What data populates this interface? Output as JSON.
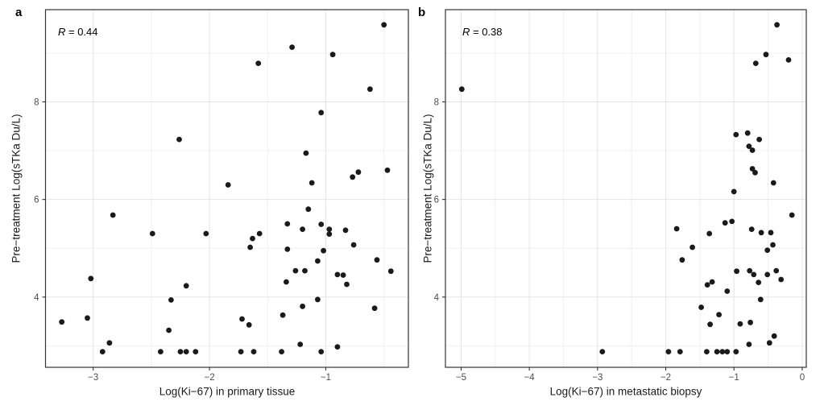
{
  "figure": {
    "colors": {
      "background": "#ffffff",
      "panel_border": "#333333",
      "grid_major": "#e5e5e5",
      "grid_minor": "#f0f0f0",
      "point": "#1a1a1a",
      "tick_mark": "#333333",
      "tick_label": "#4d4d4d",
      "axis_title": "#1a1a1a"
    }
  },
  "chart_data": [
    {
      "type": "scatter",
      "panel_label": "a",
      "annotation_r": "R",
      "annotation_value": " = 0.44",
      "annotation": "R = 0.44",
      "xlabel": "Log(Ki−67) in primary tissue",
      "ylabel": "Pre−treatment Log(sTKa Du/L)",
      "xlim": [
        -3.41,
        -0.29
      ],
      "ylim": [
        2.56,
        9.89
      ],
      "x_major_ticks": [
        -3,
        -2,
        -1
      ],
      "x_minor_ticks": [
        -2.5,
        -1.5,
        -0.5
      ],
      "y_major_ticks": [
        4,
        6,
        8
      ],
      "y_minor_ticks": [
        3,
        5,
        7,
        9
      ],
      "grid": true,
      "legend": "none",
      "points": [
        [
          -0.5,
          9.58
        ],
        [
          -1.29,
          9.12
        ],
        [
          -0.94,
          8.97
        ],
        [
          -1.58,
          8.79
        ],
        [
          -0.62,
          8.26
        ],
        [
          -1.04,
          7.78
        ],
        [
          -2.26,
          7.23
        ],
        [
          -1.17,
          6.95
        ],
        [
          -1.84,
          6.3
        ],
        [
          -1.12,
          6.34
        ],
        [
          -0.77,
          6.46
        ],
        [
          -0.72,
          6.56
        ],
        [
          -0.47,
          6.6
        ],
        [
          -2.83,
          5.68
        ],
        [
          -1.15,
          5.8
        ],
        [
          -2.49,
          5.3
        ],
        [
          -2.03,
          5.3
        ],
        [
          -1.57,
          5.3
        ],
        [
          -1.63,
          5.2
        ],
        [
          -1.65,
          5.02
        ],
        [
          -1.33,
          5.5
        ],
        [
          -1.2,
          5.39
        ],
        [
          -1.04,
          5.49
        ],
        [
          -0.97,
          5.39
        ],
        [
          -0.97,
          5.29
        ],
        [
          -0.83,
          5.37
        ],
        [
          -0.76,
          5.07
        ],
        [
          -1.33,
          4.98
        ],
        [
          -1.02,
          4.95
        ],
        [
          -1.07,
          4.74
        ],
        [
          -0.56,
          4.76
        ],
        [
          -1.26,
          4.54
        ],
        [
          -1.18,
          4.54
        ],
        [
          -0.44,
          4.53
        ],
        [
          -0.9,
          4.46
        ],
        [
          -0.85,
          4.45
        ],
        [
          -1.34,
          4.31
        ],
        [
          -0.82,
          4.26
        ],
        [
          -3.02,
          4.38
        ],
        [
          -2.2,
          4.23
        ],
        [
          -2.33,
          3.94
        ],
        [
          -1.07,
          3.95
        ],
        [
          -1.2,
          3.81
        ],
        [
          -0.58,
          3.77
        ],
        [
          -1.37,
          3.63
        ],
        [
          -3.27,
          3.49
        ],
        [
          -3.05,
          3.57
        ],
        [
          -2.35,
          3.32
        ],
        [
          -1.72,
          3.55
        ],
        [
          -1.66,
          3.43
        ],
        [
          -2.86,
          3.06
        ],
        [
          -1.22,
          3.03
        ],
        [
          -0.9,
          2.98
        ],
        [
          -2.92,
          2.88
        ],
        [
          -2.42,
          2.88
        ],
        [
          -2.25,
          2.88
        ],
        [
          -2.2,
          2.88
        ],
        [
          -2.12,
          2.88
        ],
        [
          -1.73,
          2.88
        ],
        [
          -1.62,
          2.88
        ],
        [
          -1.38,
          2.88
        ],
        [
          -1.04,
          2.88
        ]
      ]
    },
    {
      "type": "scatter",
      "panel_label": "b",
      "annotation_r": "R",
      "annotation_value": " = 0.38",
      "annotation": "R = 0.38",
      "xlabel": "Log(Ki−67) in metastatic biopsy",
      "ylabel": "Pre−treatment Log(sTKa Du/L)",
      "xlim": [
        -5.23,
        0.06
      ],
      "ylim": [
        2.56,
        9.89
      ],
      "x_major_ticks": [
        -5,
        -4,
        -3,
        -2,
        -1,
        0
      ],
      "x_minor_ticks": [
        -4.5,
        -3.5,
        -2.5,
        -1.5,
        -0.5
      ],
      "y_major_ticks": [
        4,
        6,
        8
      ],
      "y_minor_ticks": [
        3,
        5,
        7,
        9
      ],
      "grid": true,
      "legend": "none",
      "points": [
        [
          -4.99,
          8.26
        ],
        [
          -0.37,
          9.58
        ],
        [
          -0.53,
          8.97
        ],
        [
          -0.68,
          8.79
        ],
        [
          -0.2,
          8.86
        ],
        [
          -0.97,
          7.33
        ],
        [
          -0.8,
          7.36
        ],
        [
          -0.63,
          7.23
        ],
        [
          -0.78,
          7.09
        ],
        [
          -0.73,
          7.01
        ],
        [
          -0.73,
          6.63
        ],
        [
          -0.69,
          6.55
        ],
        [
          -0.42,
          6.34
        ],
        [
          -1.0,
          6.16
        ],
        [
          -0.15,
          5.68
        ],
        [
          -1.13,
          5.52
        ],
        [
          -1.03,
          5.55
        ],
        [
          -1.84,
          5.4
        ],
        [
          -1.36,
          5.3
        ],
        [
          -0.74,
          5.39
        ],
        [
          -0.6,
          5.32
        ],
        [
          -0.46,
          5.32
        ],
        [
          -0.43,
          5.07
        ],
        [
          -0.51,
          4.96
        ],
        [
          -1.61,
          5.02
        ],
        [
          -1.76,
          4.76
        ],
        [
          -0.96,
          4.53
        ],
        [
          -0.77,
          4.54
        ],
        [
          -0.71,
          4.46
        ],
        [
          -0.64,
          4.3
        ],
        [
          -0.51,
          4.46
        ],
        [
          -0.38,
          4.54
        ],
        [
          -0.31,
          4.36
        ],
        [
          -1.39,
          4.25
        ],
        [
          -1.32,
          4.31
        ],
        [
          -1.1,
          4.12
        ],
        [
          -0.61,
          3.95
        ],
        [
          -1.48,
          3.79
        ],
        [
          -1.22,
          3.64
        ],
        [
          -1.35,
          3.44
        ],
        [
          -0.91,
          3.45
        ],
        [
          -0.76,
          3.48
        ],
        [
          -0.41,
          3.2
        ],
        [
          -0.48,
          3.06
        ],
        [
          -0.78,
          3.03
        ],
        [
          -2.93,
          2.88
        ],
        [
          -1.96,
          2.88
        ],
        [
          -1.79,
          2.88
        ],
        [
          -1.4,
          2.88
        ],
        [
          -1.25,
          2.88
        ],
        [
          -1.17,
          2.88
        ],
        [
          -1.1,
          2.88
        ],
        [
          -0.97,
          2.88
        ]
      ]
    }
  ]
}
